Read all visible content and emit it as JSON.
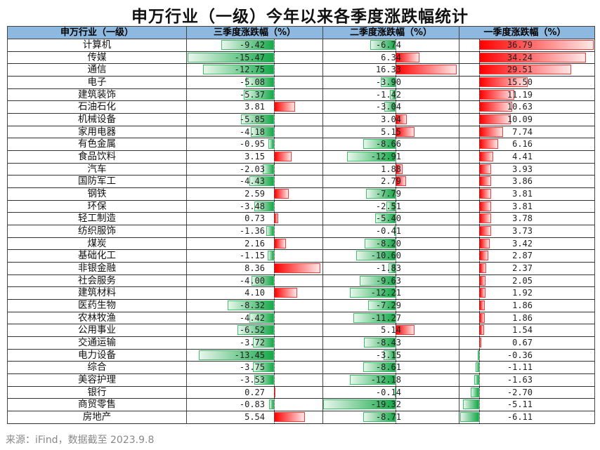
{
  "title": "申万行业（一级）今年以来各季度涨跌幅统计",
  "headers": [
    "申万行业（一级）",
    "三季度涨跌幅（%）",
    "二季度涨跌幅（%）",
    "一季度涨跌幅（%）"
  ],
  "rows": [
    [
      "计算机",
      -9.42,
      -6.74,
      36.79
    ],
    [
      "传媒",
      -15.47,
      6.34,
      34.24
    ],
    [
      "通信",
      -12.75,
      16.33,
      29.51
    ],
    [
      "电子",
      -5.08,
      -3.9,
      15.5
    ],
    [
      "建筑装饰",
      -5.37,
      -1.42,
      11.19
    ],
    [
      "石油石化",
      3.81,
      -3.04,
      10.63
    ],
    [
      "机械设备",
      -5.85,
      3.04,
      10.09
    ],
    [
      "家用电器",
      -4.18,
      5.15,
      7.74
    ],
    [
      "有色金属",
      -0.95,
      -8.66,
      6.16
    ],
    [
      "食品饮料",
      3.15,
      -12.91,
      4.41
    ],
    [
      "汽车",
      -2.03,
      1.88,
      3.93
    ],
    [
      "国防军工",
      -4.43,
      2.79,
      3.86
    ],
    [
      "钢铁",
      2.59,
      -7.79,
      3.81
    ],
    [
      "环保",
      -3.48,
      -2.51,
      3.81
    ],
    [
      "轻工制造",
      0.73,
      -5.4,
      3.78
    ],
    [
      "纺织服饰",
      -1.36,
      -0.41,
      3.73
    ],
    [
      "煤炭",
      2.16,
      -8.2,
      3.42
    ],
    [
      "基础化工",
      -1.15,
      -10.6,
      2.87
    ],
    [
      "非银金融",
      8.36,
      -1.83,
      2.37
    ],
    [
      "社会服务",
      -4.0,
      -9.63,
      2.05
    ],
    [
      "建筑材料",
      4.1,
      -12.21,
      1.92
    ],
    [
      "医药生物",
      -8.32,
      -7.29,
      1.86
    ],
    [
      "农林牧渔",
      -4.42,
      -11.27,
      1.86
    ],
    [
      "公用事业",
      -6.52,
      5.14,
      1.54
    ],
    [
      "交通运输",
      -3.72,
      -8.43,
      0.67
    ],
    [
      "电力设备",
      -13.45,
      -3.15,
      -0.36
    ],
    [
      "综合",
      -3.75,
      -8.61,
      -1.11
    ],
    [
      "美容护理",
      -3.53,
      -12.18,
      -1.63
    ],
    [
      "银行",
      0.27,
      -0.14,
      -2.7
    ],
    [
      "商贸零售",
      -0.83,
      -19.32,
      -5.11
    ],
    [
      "房地产",
      5.54,
      -8.71,
      -6.11
    ]
  ],
  "footer": "来源：iFind，数据截至 2023.9.8"
}
